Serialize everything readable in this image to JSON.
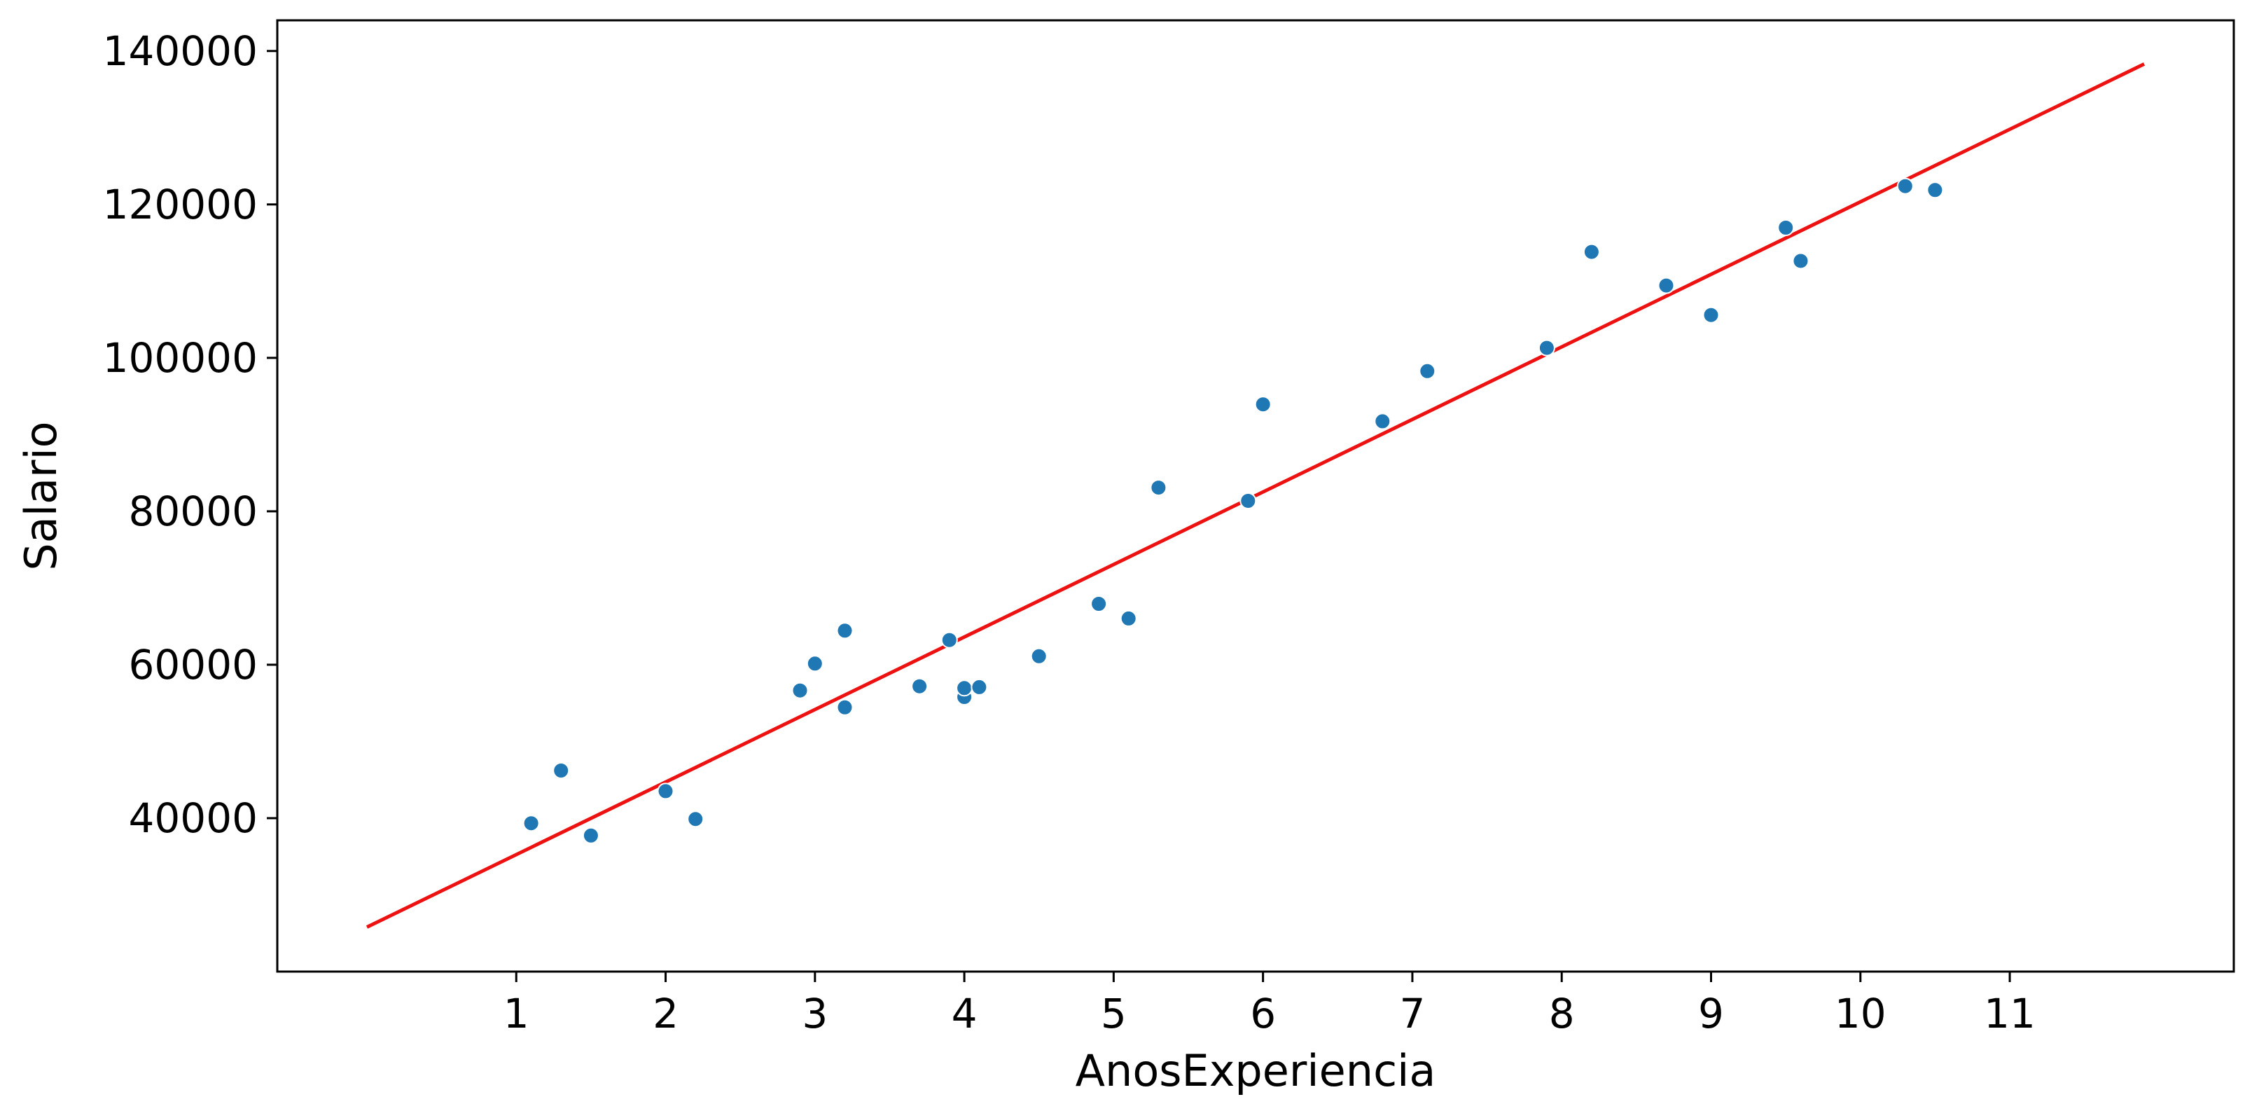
{
  "chart_data": {
    "type": "scatter",
    "title": "",
    "xlabel": "AnosExperiencia",
    "ylabel": "Salario",
    "xlim": [
      -0.6,
      12.5
    ],
    "ylim": [
      20000,
      144000
    ],
    "xticks": [
      1,
      2,
      3,
      4,
      5,
      6,
      7,
      8,
      9,
      10,
      11
    ],
    "yticks": [
      40000,
      60000,
      80000,
      100000,
      120000,
      140000
    ],
    "grid": false,
    "colors": {
      "points": "#1f77b4",
      "line": "#ee1111"
    },
    "series": [
      {
        "type": "scatter",
        "points": [
          [
            1.1,
            39343
          ],
          [
            1.3,
            46205
          ],
          [
            1.5,
            37731
          ],
          [
            2.0,
            43525
          ],
          [
            2.2,
            39891
          ],
          [
            2.9,
            56642
          ],
          [
            3.0,
            60150
          ],
          [
            3.2,
            54445
          ],
          [
            3.2,
            64445
          ],
          [
            3.7,
            57189
          ],
          [
            3.9,
            63218
          ],
          [
            4.0,
            55794
          ],
          [
            4.0,
            56957
          ],
          [
            4.1,
            57081
          ],
          [
            4.5,
            61111
          ],
          [
            4.9,
            67938
          ],
          [
            5.1,
            66029
          ],
          [
            5.3,
            83088
          ],
          [
            5.9,
            81363
          ],
          [
            6.0,
            93940
          ],
          [
            6.8,
            91738
          ],
          [
            7.1,
            98273
          ],
          [
            7.9,
            101302
          ],
          [
            8.2,
            113812
          ],
          [
            8.7,
            109431
          ],
          [
            9.0,
            105582
          ],
          [
            9.5,
            116969
          ],
          [
            9.6,
            112635
          ],
          [
            10.3,
            122391
          ],
          [
            10.5,
            121872
          ]
        ]
      },
      {
        "type": "line",
        "points": [
          [
            0.0,
            25800
          ],
          [
            11.9,
            138300
          ]
        ]
      }
    ]
  }
}
